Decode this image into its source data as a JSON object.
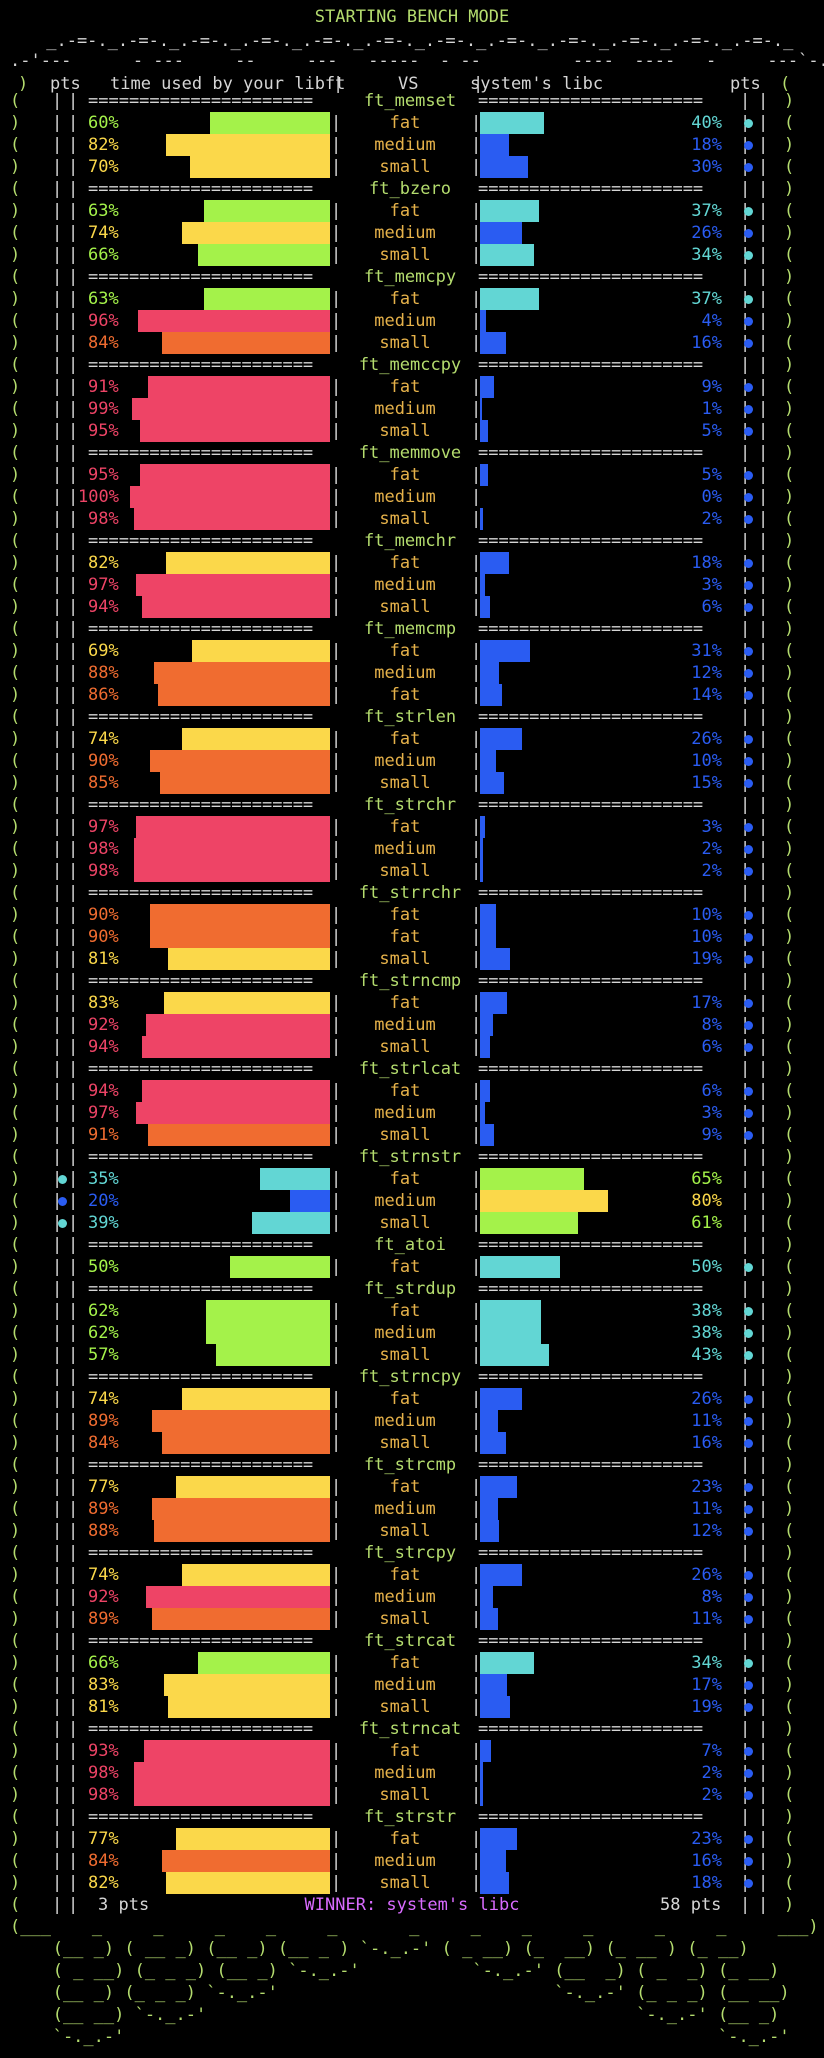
{
  "title": "STARTING BENCH MODE",
  "colors": {
    "green": "#a4f24a",
    "yellow": "#fbd84a",
    "orange": "#f06c30",
    "red": "#ee4466",
    "cyan": "#62d6d4",
    "blue": "#2a5cf2",
    "border": "#b4dc6e",
    "winner": "#d96bff"
  },
  "art": {
    "top1": " _.-=-._.-=-._.-=-._.-=-._.-=-._.-=-._.-=-._.-=-._.-=-._.-=-._.-=-._.-=-._",
    "top2": ".-'---      - ---     --     ---   -----  - --         ----  ----   -     ---`-.",
    "bot1": "(___    _     _     _    _     _       _     _    _     _      _     _     ___)",
    "bot2": "   (__ _) ( __ _) (__ _) (__ _ ) `-._.-' ( _ __) (_  __) (_ __ ) (_ __)",
    "bot3": "   ( _ __) (_ _ _) (__ _) `-._.-'           `-._.-' (__  _) ( _  _) (_ __)",
    "bot4": "   (__ _) (_ _ _) `-._.-'                           `-._.-' (_ _ _) (__ __)",
    "bot5": "   (__ __) `-._.-'                                          `-._.-' (__ _)",
    "bot6": "   `-._.-'                                                          `-._.-'"
  },
  "headers": {
    "pts_left": "pts",
    "left": "time used by your libft",
    "vs": "VS",
    "right": "system's libc",
    "pts_right": "pts"
  },
  "functions": [
    {
      "name": "ft_memset",
      "rows": [
        {
          "size": "fat",
          "l": 60,
          "lc": "green",
          "r": 40,
          "rc": "cyan",
          "win": "right"
        },
        {
          "size": "medium",
          "l": 82,
          "lc": "yellow",
          "r": 18,
          "rc": "blue",
          "win": "right"
        },
        {
          "size": "small",
          "l": 70,
          "lc": "yellow",
          "r": 30,
          "rc": "blue",
          "win": "right"
        }
      ]
    },
    {
      "name": "ft_bzero",
      "rows": [
        {
          "size": "fat",
          "l": 63,
          "lc": "green",
          "r": 37,
          "rc": "cyan",
          "win": "right"
        },
        {
          "size": "medium",
          "l": 74,
          "lc": "yellow",
          "r": 26,
          "rc": "blue",
          "win": "right"
        },
        {
          "size": "small",
          "l": 66,
          "lc": "green",
          "r": 34,
          "rc": "cyan",
          "win": "right"
        }
      ]
    },
    {
      "name": "ft_memcpy",
      "rows": [
        {
          "size": "fat",
          "l": 63,
          "lc": "green",
          "r": 37,
          "rc": "cyan",
          "win": "right"
        },
        {
          "size": "medium",
          "l": 96,
          "lc": "red",
          "r": 4,
          "rc": "blue",
          "win": "right"
        },
        {
          "size": "small",
          "l": 84,
          "lc": "orange",
          "r": 16,
          "rc": "blue",
          "win": "right"
        }
      ]
    },
    {
      "name": "ft_memccpy",
      "rows": [
        {
          "size": "fat",
          "l": 91,
          "lc": "red",
          "r": 9,
          "rc": "blue",
          "win": "right"
        },
        {
          "size": "medium",
          "l": 99,
          "lc": "red",
          "r": 1,
          "rc": "blue",
          "win": "right"
        },
        {
          "size": "small",
          "l": 95,
          "lc": "red",
          "r": 5,
          "rc": "blue",
          "win": "right"
        }
      ]
    },
    {
      "name": "ft_memmove",
      "rows": [
        {
          "size": "fat",
          "l": 95,
          "lc": "red",
          "r": 5,
          "rc": "blue",
          "win": "right"
        },
        {
          "size": "medium",
          "l": 100,
          "lc": "red",
          "r": 0,
          "rc": "blue",
          "win": "right"
        },
        {
          "size": "small",
          "l": 98,
          "lc": "red",
          "r": 2,
          "rc": "blue",
          "win": "right"
        }
      ]
    },
    {
      "name": "ft_memchr",
      "rows": [
        {
          "size": "fat",
          "l": 82,
          "lc": "yellow",
          "r": 18,
          "rc": "blue",
          "win": "right"
        },
        {
          "size": "medium",
          "l": 97,
          "lc": "red",
          "r": 3,
          "rc": "blue",
          "win": "right"
        },
        {
          "size": "small",
          "l": 94,
          "lc": "red",
          "r": 6,
          "rc": "blue",
          "win": "right"
        }
      ]
    },
    {
      "name": "ft_memcmp",
      "rows": [
        {
          "size": "fat",
          "l": 69,
          "lc": "yellow",
          "r": 31,
          "rc": "blue",
          "win": "right"
        },
        {
          "size": "medium",
          "l": 88,
          "lc": "orange",
          "r": 12,
          "rc": "blue",
          "win": "right"
        },
        {
          "size": "fat",
          "l": 86,
          "lc": "orange",
          "r": 14,
          "rc": "blue",
          "win": "right"
        }
      ]
    },
    {
      "name": "ft_strlen",
      "rows": [
        {
          "size": "fat",
          "l": 74,
          "lc": "yellow",
          "r": 26,
          "rc": "blue",
          "win": "right"
        },
        {
          "size": "medium",
          "l": 90,
          "lc": "orange",
          "r": 10,
          "rc": "blue",
          "win": "right"
        },
        {
          "size": "small",
          "l": 85,
          "lc": "orange",
          "r": 15,
          "rc": "blue",
          "win": "right"
        }
      ]
    },
    {
      "name": "ft_strchr",
      "rows": [
        {
          "size": "fat",
          "l": 97,
          "lc": "red",
          "r": 3,
          "rc": "blue",
          "win": "right"
        },
        {
          "size": "medium",
          "l": 98,
          "lc": "red",
          "r": 2,
          "rc": "blue",
          "win": "right"
        },
        {
          "size": "small",
          "l": 98,
          "lc": "red",
          "r": 2,
          "rc": "blue",
          "win": "right"
        }
      ]
    },
    {
      "name": "ft_strrchr",
      "rows": [
        {
          "size": "fat",
          "l": 90,
          "lc": "orange",
          "r": 10,
          "rc": "blue",
          "win": "right"
        },
        {
          "size": "fat",
          "l": 90,
          "lc": "orange",
          "r": 10,
          "rc": "blue",
          "win": "right"
        },
        {
          "size": "small",
          "l": 81,
          "lc": "yellow",
          "r": 19,
          "rc": "blue",
          "win": "right"
        }
      ]
    },
    {
      "name": "ft_strncmp",
      "rows": [
        {
          "size": "fat",
          "l": 83,
          "lc": "yellow",
          "r": 17,
          "rc": "blue",
          "win": "right"
        },
        {
          "size": "medium",
          "l": 92,
          "lc": "red",
          "r": 8,
          "rc": "blue",
          "win": "right"
        },
        {
          "size": "small",
          "l": 94,
          "lc": "red",
          "r": 6,
          "rc": "blue",
          "win": "right"
        }
      ]
    },
    {
      "name": "ft_strlcat",
      "rows": [
        {
          "size": "fat",
          "l": 94,
          "lc": "red",
          "r": 6,
          "rc": "blue",
          "win": "right"
        },
        {
          "size": "medium",
          "l": 97,
          "lc": "red",
          "r": 3,
          "rc": "blue",
          "win": "right"
        },
        {
          "size": "small",
          "l": 91,
          "lc": "orange",
          "r": 9,
          "rc": "blue",
          "win": "right"
        }
      ]
    },
    {
      "name": "ft_strnstr",
      "rows": [
        {
          "size": "fat",
          "l": 35,
          "lc": "cyan",
          "r": 65,
          "rc": "green",
          "win": "left"
        },
        {
          "size": "medium",
          "l": 20,
          "lc": "blue",
          "r": 80,
          "rc": "yellow",
          "win": "left"
        },
        {
          "size": "small",
          "l": 39,
          "lc": "cyan",
          "r": 61,
          "rc": "green",
          "win": "left"
        }
      ]
    },
    {
      "name": "ft_atoi",
      "rows": [
        {
          "size": "fat",
          "l": 50,
          "lc": "green",
          "r": 50,
          "rc": "cyan",
          "win": "right"
        }
      ]
    },
    {
      "name": "ft_strdup",
      "rows": [
        {
          "size": "fat",
          "l": 62,
          "lc": "green",
          "r": 38,
          "rc": "cyan",
          "win": "right"
        },
        {
          "size": "medium",
          "l": 62,
          "lc": "green",
          "r": 38,
          "rc": "cyan",
          "win": "right"
        },
        {
          "size": "small",
          "l": 57,
          "lc": "green",
          "r": 43,
          "rc": "cyan",
          "win": "right"
        }
      ]
    },
    {
      "name": "ft_strncpy",
      "rows": [
        {
          "size": "fat",
          "l": 74,
          "lc": "yellow",
          "r": 26,
          "rc": "blue",
          "win": "right"
        },
        {
          "size": "medium",
          "l": 89,
          "lc": "orange",
          "r": 11,
          "rc": "blue",
          "win": "right"
        },
        {
          "size": "small",
          "l": 84,
          "lc": "orange",
          "r": 16,
          "rc": "blue",
          "win": "right"
        }
      ]
    },
    {
      "name": "ft_strcmp",
      "rows": [
        {
          "size": "fat",
          "l": 77,
          "lc": "yellow",
          "r": 23,
          "rc": "blue",
          "win": "right"
        },
        {
          "size": "medium",
          "l": 89,
          "lc": "orange",
          "r": 11,
          "rc": "blue",
          "win": "right"
        },
        {
          "size": "small",
          "l": 88,
          "lc": "orange",
          "r": 12,
          "rc": "blue",
          "win": "right"
        }
      ]
    },
    {
      "name": "ft_strcpy",
      "rows": [
        {
          "size": "fat",
          "l": 74,
          "lc": "yellow",
          "r": 26,
          "rc": "blue",
          "win": "right"
        },
        {
          "size": "medium",
          "l": 92,
          "lc": "red",
          "r": 8,
          "rc": "blue",
          "win": "right"
        },
        {
          "size": "small",
          "l": 89,
          "lc": "orange",
          "r": 11,
          "rc": "blue",
          "win": "right"
        }
      ]
    },
    {
      "name": "ft_strcat",
      "rows": [
        {
          "size": "fat",
          "l": 66,
          "lc": "green",
          "r": 34,
          "rc": "cyan",
          "win": "right"
        },
        {
          "size": "medium",
          "l": 83,
          "lc": "yellow",
          "r": 17,
          "rc": "blue",
          "win": "right"
        },
        {
          "size": "small",
          "l": 81,
          "lc": "yellow",
          "r": 19,
          "rc": "blue",
          "win": "right"
        }
      ]
    },
    {
      "name": "ft_strncat",
      "rows": [
        {
          "size": "fat",
          "l": 93,
          "lc": "red",
          "r": 7,
          "rc": "blue",
          "win": "right"
        },
        {
          "size": "medium",
          "l": 98,
          "lc": "red",
          "r": 2,
          "rc": "blue",
          "win": "right"
        },
        {
          "size": "small",
          "l": 98,
          "lc": "red",
          "r": 2,
          "rc": "blue",
          "win": "right"
        }
      ]
    },
    {
      "name": "ft_strstr",
      "rows": [
        {
          "size": "fat",
          "l": 77,
          "lc": "yellow",
          "r": 23,
          "rc": "blue",
          "win": "right"
        },
        {
          "size": "medium",
          "l": 84,
          "lc": "orange",
          "r": 16,
          "rc": "blue",
          "win": "right"
        },
        {
          "size": "small",
          "l": 82,
          "lc": "yellow",
          "r": 18,
          "rc": "blue",
          "win": "right"
        }
      ]
    }
  ],
  "footer": {
    "left_pts": "3 pts",
    "winner": "WINNER: system's libc",
    "right_pts": "58 pts"
  }
}
